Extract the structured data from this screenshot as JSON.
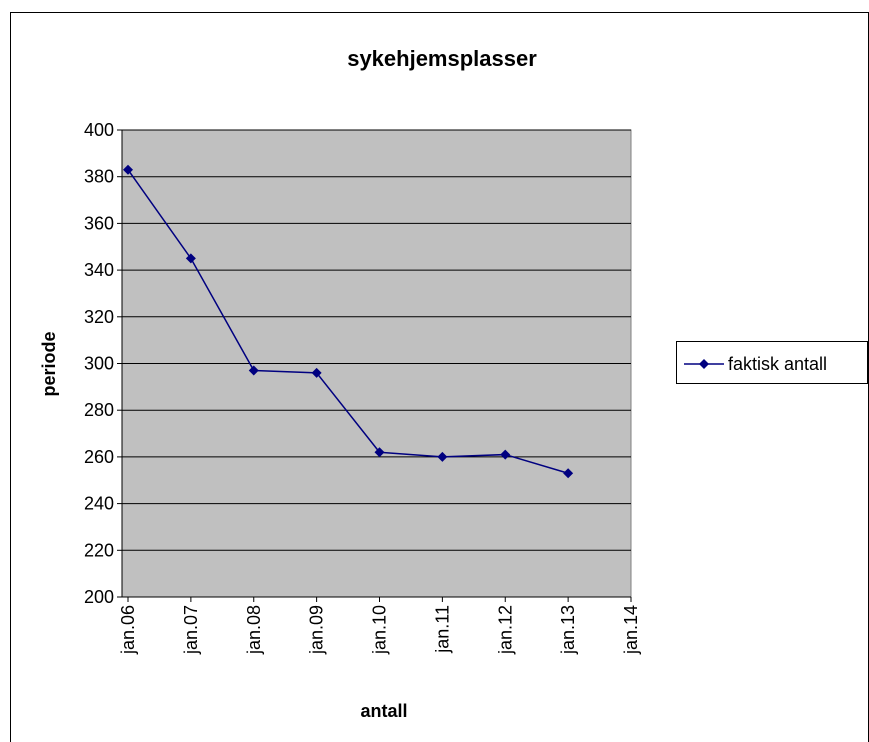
{
  "chart_data": {
    "type": "line",
    "title": "sykehjemsplasser",
    "x_label": "antall",
    "y_label": "periode",
    "categories": [
      "jan.06",
      "jan.07",
      "jan.08",
      "jan.09",
      "jan.10",
      "jan.11",
      "jan.12",
      "jan.13",
      "jan.14"
    ],
    "series": [
      {
        "name": "faktisk antall",
        "color": "#000080",
        "values": [
          383,
          345,
          297,
          296,
          262,
          260,
          261,
          253,
          null
        ]
      }
    ],
    "ylim": [
      200,
      400
    ],
    "yticks": [
      200,
      220,
      240,
      260,
      280,
      300,
      320,
      340,
      360,
      380,
      400
    ],
    "grid": true,
    "plot_background": "#c0c0c0",
    "legend": "right"
  }
}
